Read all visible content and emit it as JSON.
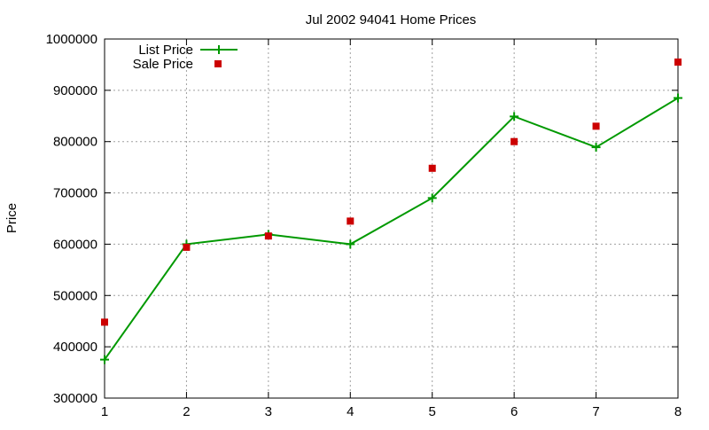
{
  "chart_data": {
    "type": "line",
    "title": "Jul 2002 94041 Home Prices",
    "xlabel": "",
    "ylabel": "Price",
    "xlim": [
      1,
      8
    ],
    "ylim": [
      300000,
      1000000
    ],
    "x": [
      1,
      2,
      3,
      4,
      5,
      6,
      7,
      8
    ],
    "xticks": [
      "1",
      "2",
      "3",
      "4",
      "5",
      "6",
      "7",
      "8"
    ],
    "yticks": [
      "300000",
      "400000",
      "500000",
      "600000",
      "700000",
      "800000",
      "900000",
      "1000000"
    ],
    "grid": true,
    "legend_position": "top-left",
    "series": [
      {
        "name": "List Price",
        "style": "line-with-plus-markers",
        "color": "#009900",
        "values": [
          375000,
          600000,
          619000,
          600000,
          690000,
          849000,
          789000,
          885000
        ]
      },
      {
        "name": "Sale Price",
        "style": "square-markers",
        "color": "#cc0000",
        "values": [
          448000,
          594000,
          616000,
          645000,
          748000,
          800000,
          830000,
          955000
        ]
      }
    ]
  }
}
